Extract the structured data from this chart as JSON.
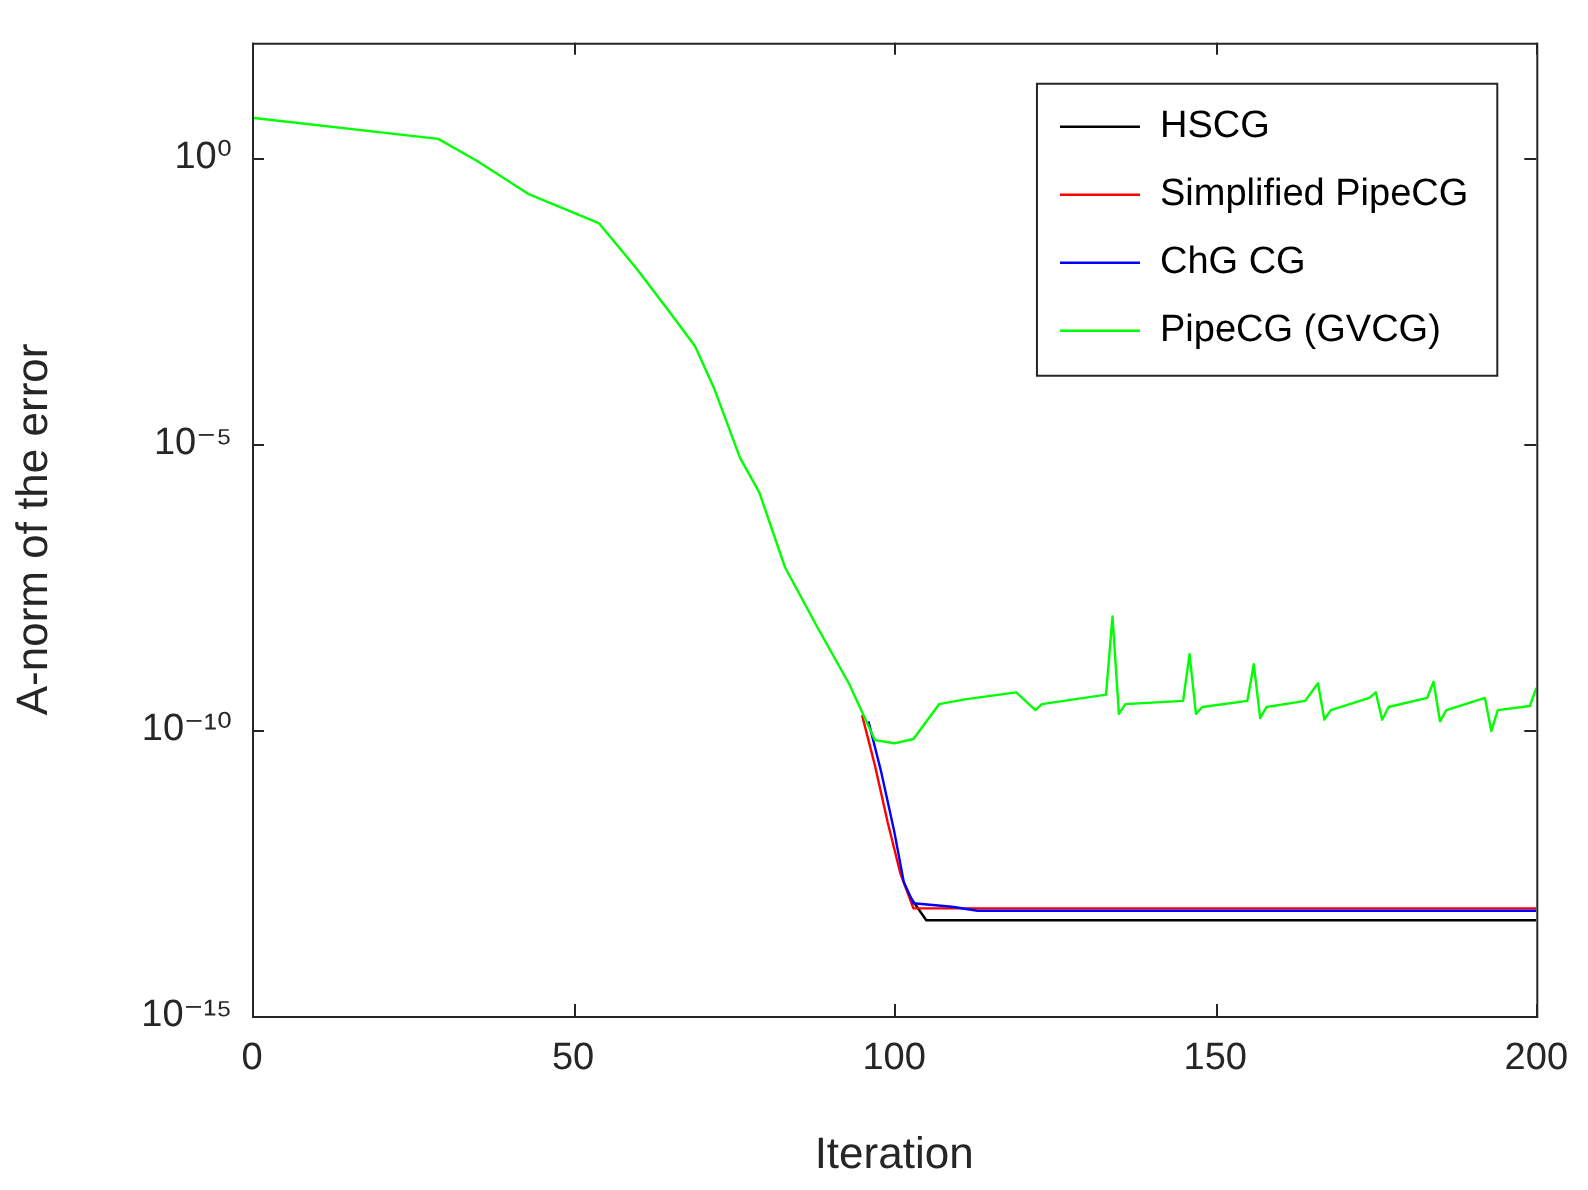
{
  "chart_data": {
    "type": "line",
    "xlabel": "Iteration",
    "ylabel": "A-norm of the error",
    "log": "y",
    "legend": "top right",
    "xlim": [
      0,
      200
    ],
    "xticks": [
      0,
      50,
      100,
      150,
      200
    ],
    "ylim": [
      1e-15,
      100
    ],
    "yticks": [
      {
        "value": 1e-15,
        "label": "10⁻¹⁵"
      },
      {
        "value": 1e-10,
        "label": "10⁻¹⁰"
      },
      {
        "value": 1e-05,
        "label": "10⁻⁵"
      },
      {
        "value": 1,
        "label": "10⁰"
      }
    ],
    "series": [
      {
        "name": "HSCG",
        "color": "#000000",
        "x": [
          102.5,
          105,
          200
        ],
        "values": [
          1.2e-13,
          4.7e-14,
          4.7e-14
        ]
      },
      {
        "name": "Simplified PipeCG",
        "color": "#ff0000",
        "x": [
          95,
          97,
          99,
          101,
          103,
          200
        ],
        "values": [
          1.8e-10,
          2.4e-11,
          2.4e-12,
          3e-13,
          7.6e-14,
          7.6e-14
        ]
      },
      {
        "name": "ChG CG",
        "color": "#0000ff",
        "x": [
          96,
          98,
          100,
          101.5,
          103,
          109,
          113,
          200
        ],
        "values": [
          1.4e-10,
          1.8e-11,
          1.7e-12,
          2.2e-13,
          9.3e-14,
          8.1e-14,
          6.9e-14,
          6.9e-14
        ]
      },
      {
        "name": "PipeCG (GVCG)",
        "color": "#00ff00",
        "x": [
          0,
          29,
          35,
          43,
          54,
          60,
          65,
          69,
          72,
          76,
          79,
          83,
          88,
          93,
          97,
          100,
          103,
          107,
          111,
          119,
          122,
          123,
          133,
          134,
          135,
          136,
          145,
          146,
          147,
          148,
          155,
          156,
          157,
          158,
          164,
          166,
          167,
          168,
          174,
          175,
          176,
          177,
          183,
          184,
          185,
          186,
          192,
          193,
          194,
          199,
          200
        ],
        "values": [
          4.9,
          2.1,
          0.87,
          0.23,
          0.071,
          0.011,
          0.002,
          0.0005,
          9e-05,
          5.6e-06,
          1.4e-06,
          6.9e-08,
          6.3e-09,
          6.3e-10,
          6.6e-11,
          5.8e-11,
          6.9e-11,
          2.8e-10,
          3.4e-10,
          4.5e-10,
          2.2e-10,
          2.8e-10,
          4.1e-10,
          9.5e-09,
          1.9e-10,
          2.8e-10,
          3.2e-10,
          2.1e-09,
          1.9e-10,
          2.5e-10,
          3.2e-10,
          1.4e-09,
          1.6e-10,
          2.5e-10,
          3.2e-10,
          6.5e-10,
          1.5e-10,
          2.2e-10,
          3.6e-10,
          4.5e-10,
          1.5e-10,
          2.5e-10,
          3.6e-10,
          6.9e-10,
          1.4e-10,
          2.2e-10,
          3.6e-10,
          9.5e-11,
          2.2e-10,
          2.6e-10,
          5.4e-10
        ]
      }
    ]
  }
}
